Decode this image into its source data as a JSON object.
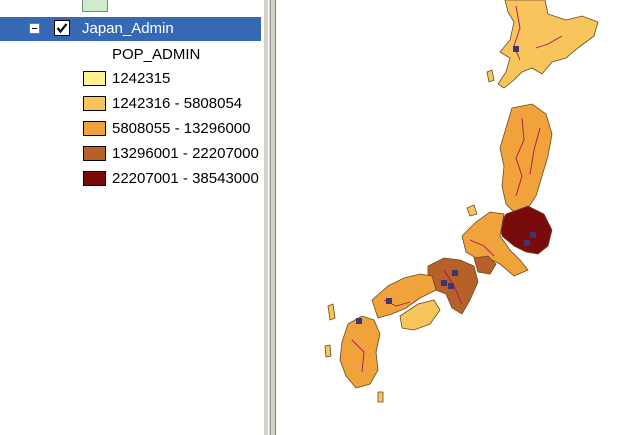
{
  "toc": {
    "layer": {
      "name": "Japan_Admin",
      "checked": true,
      "expanded": true
    },
    "field_name": "POP_ADMIN",
    "legend": [
      {
        "label": "1242315",
        "color": "#fdf28f"
      },
      {
        "label": "1242316 - 5808054",
        "color": "#f8c45c"
      },
      {
        "label": "5808055 - 13296000",
        "color": "#f0a33a"
      },
      {
        "label": "13296001 - 22207000",
        "color": "#b6612a"
      },
      {
        "label": "22207001 - 38543000",
        "color": "#7a0b0b"
      }
    ]
  },
  "map": {
    "colors": {
      "outline": "#6a4a20",
      "rivers": "#b0105a",
      "roads": "#3d3673"
    }
  }
}
